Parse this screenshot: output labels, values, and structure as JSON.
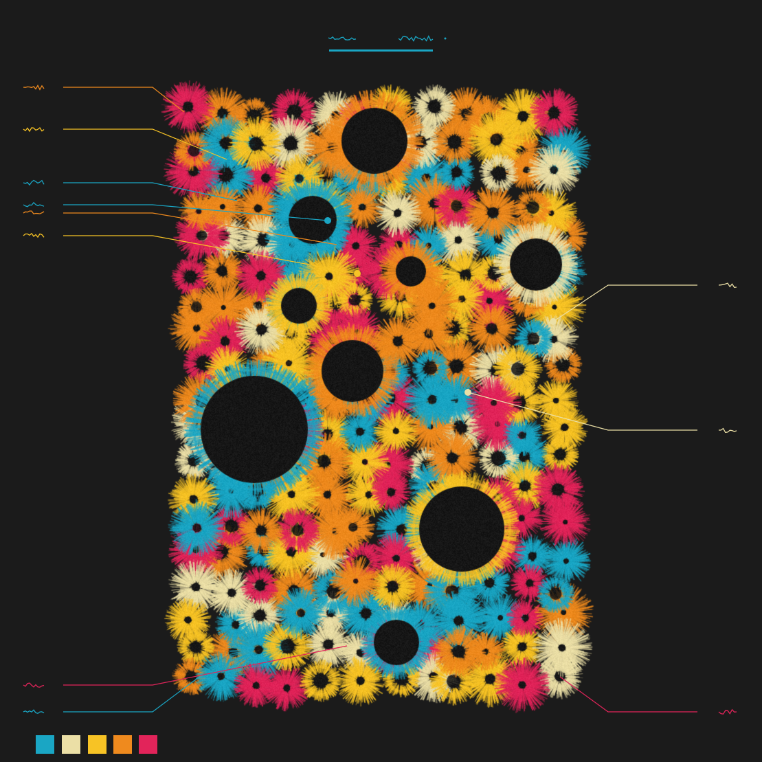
{
  "palette": [
    "#1aa6c4",
    "#ebdfa6",
    "#f7c325",
    "#ef8a1e",
    "#e2245a"
  ],
  "background": "#1b1b1b",
  "title_color": "#1aa6c4",
  "annotations": {
    "left": [
      {
        "color": "#ef8a1e"
      },
      {
        "color": "#f7c325"
      },
      {
        "color": "#1aa6c4"
      },
      {
        "color": "#1aa6c4"
      },
      {
        "color": "#ef8a1e"
      },
      {
        "color": "#f7c325"
      },
      {
        "color": "#e2245a"
      },
      {
        "color": "#1aa6c4"
      }
    ],
    "right": [
      {
        "color": "#ebdfa6"
      },
      {
        "color": "#ebdfa6"
      },
      {
        "color": "#e2245a"
      }
    ]
  }
}
